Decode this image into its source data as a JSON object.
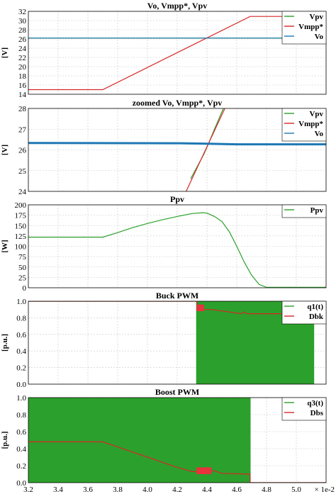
{
  "chart_data": [
    {
      "type": "line",
      "title": "Vo, Vmpp*, Vpv",
      "ylabel": "[V]",
      "xlim": [
        0.032,
        0.052
      ],
      "ylim": [
        14,
        32
      ],
      "yticks": [
        14,
        16,
        18,
        20,
        22,
        24,
        26,
        28,
        30,
        32
      ],
      "grid": true,
      "legend": "top-right",
      "series": [
        {
          "name": "Vpv",
          "color": "#2ca02c",
          "points": [
            [
              0.032,
              26.2
            ],
            [
              0.052,
              26.2
            ]
          ]
        },
        {
          "name": "Vmpp*",
          "color": "#d62728",
          "points": [
            [
              0.032,
              15.0
            ],
            [
              0.037,
              15.0
            ],
            [
              0.0469,
              30.9
            ],
            [
              0.052,
              30.9
            ]
          ]
        },
        {
          "name": "Vo",
          "color": "#1f77b4",
          "points": [
            [
              0.032,
              26.2
            ],
            [
              0.052,
              26.2
            ]
          ]
        }
      ]
    },
    {
      "type": "line",
      "title": "zoomed Vo, Vmpp*, Vpv",
      "ylabel": "[V]",
      "xlim": [
        0.032,
        0.052
      ],
      "ylim": [
        24,
        28
      ],
      "yticks": [
        24,
        25,
        26,
        27,
        28
      ],
      "grid": true,
      "legend": "top-right",
      "series": [
        {
          "name": "Vpv",
          "color": "#2ca02c",
          "points": [
            [
              0.0429,
              24.6
            ],
            [
              0.0438,
              25.8
            ],
            [
              0.0441,
              26.3
            ],
            [
              0.0445,
              27.0
            ],
            [
              0.0451,
              28.0
            ]
          ]
        },
        {
          "name": "Vmpp*",
          "color": "#d62728",
          "points": [
            [
              0.0426,
              24.0
            ],
            [
              0.0452,
              28.0
            ]
          ]
        },
        {
          "name": "Vo",
          "color": "#1f77b4",
          "points": [
            [
              0.032,
              26.33
            ],
            [
              0.042,
              26.32
            ],
            [
              0.044,
              26.3
            ],
            [
              0.046,
              26.27
            ],
            [
              0.052,
              26.27
            ]
          ]
        }
      ]
    },
    {
      "type": "line",
      "title": "Ppv",
      "ylabel": "[W]",
      "xlim": [
        0.032,
        0.052
      ],
      "ylim": [
        0,
        200
      ],
      "yticks": [
        0,
        25,
        50,
        75,
        100,
        125,
        150,
        175,
        200
      ],
      "grid": true,
      "legend": "top-right",
      "series": [
        {
          "name": "Ppv",
          "color": "#2ca02c",
          "points": [
            [
              0.032,
              122
            ],
            [
              0.037,
              122
            ],
            [
              0.038,
              133
            ],
            [
              0.039,
              145
            ],
            [
              0.04,
              155
            ],
            [
              0.041,
              164
            ],
            [
              0.042,
              172
            ],
            [
              0.043,
              179
            ],
            [
              0.0437,
              181
            ],
            [
              0.044,
              180
            ],
            [
              0.0445,
              172
            ],
            [
              0.045,
              160
            ],
            [
              0.0455,
              135
            ],
            [
              0.046,
              100
            ],
            [
              0.0465,
              62
            ],
            [
              0.047,
              30
            ],
            [
              0.0475,
              8
            ],
            [
              0.048,
              1
            ],
            [
              0.052,
              1
            ]
          ]
        }
      ]
    },
    {
      "type": "line",
      "title": "Buck PWM",
      "ylabel": "[p.u.]",
      "xlim": [
        0.032,
        0.052
      ],
      "ylim": [
        0,
        1
      ],
      "yticks": [
        0.0,
        0.2,
        0.4,
        0.6,
        0.8,
        1.0
      ],
      "grid": true,
      "legend": "top-right",
      "series": [
        {
          "name": "q1(t)",
          "color": "#2ca02c",
          "band": [
            0.0433,
            0.0512,
            0,
            1
          ],
          "points": [
            [
              0.032,
              1
            ],
            [
              0.0433,
              1
            ],
            [
              0.0433,
              0
            ],
            [
              0.0512,
              0
            ]
          ]
        },
        {
          "name": "Dbk",
          "color": "#d62728",
          "points": [
            [
              0.032,
              1.0
            ],
            [
              0.0433,
              1.0
            ],
            [
              0.0435,
              0.9
            ],
            [
              0.0443,
              0.9
            ],
            [
              0.0455,
              0.87
            ],
            [
              0.0463,
              0.85
            ],
            [
              0.0465,
              0.87
            ],
            [
              0.0467,
              0.85
            ],
            [
              0.0512,
              0.85
            ]
          ]
        }
      ]
    },
    {
      "type": "line",
      "title": "Boost PWM",
      "ylabel": "[p.u.]",
      "xlabel": "× 1e-2",
      "xlim": [
        0.032,
        0.052
      ],
      "ylim": [
        0,
        1
      ],
      "yticks": [
        0.0,
        0.2,
        0.4,
        0.6,
        0.8,
        1.0
      ],
      "xtick_labels": [
        "3.2",
        "3.4",
        "3.6",
        "3.8",
        "4.0",
        "4.2",
        "4.4",
        "4.6",
        "4.8",
        "5.0"
      ],
      "xtick_values": [
        0.032,
        0.034,
        0.036,
        0.038,
        0.04,
        0.042,
        0.044,
        0.046,
        0.048,
        0.05
      ],
      "grid": true,
      "legend": "top-right",
      "series": [
        {
          "name": "q3(t)",
          "color": "#2ca02c",
          "band": [
            0.032,
            0.0469,
            0,
            1
          ],
          "points": [
            [
              0.032,
              1
            ],
            [
              0.0469,
              1
            ],
            [
              0.0469,
              0
            ],
            [
              0.052,
              0
            ]
          ]
        },
        {
          "name": "Dbs",
          "color": "#d62728",
          "points": [
            [
              0.032,
              0.48
            ],
            [
              0.037,
              0.48
            ],
            [
              0.038,
              0.42
            ],
            [
              0.039,
              0.36
            ],
            [
              0.04,
              0.3
            ],
            [
              0.041,
              0.24
            ],
            [
              0.042,
              0.18
            ],
            [
              0.043,
              0.13
            ],
            [
              0.0438,
              0.13
            ],
            [
              0.0445,
              0.14
            ],
            [
              0.045,
              0.11
            ],
            [
              0.0469,
              0.1
            ],
            [
              0.0469,
              0.0
            ],
            [
              0.052,
              0.0
            ]
          ]
        }
      ]
    }
  ]
}
